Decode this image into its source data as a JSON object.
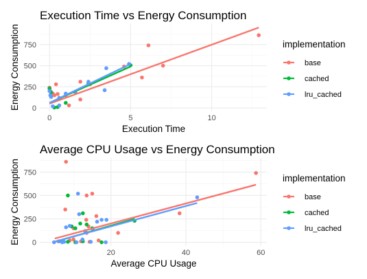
{
  "colors": {
    "base": "#F8766D",
    "cached": "#00BA38",
    "lru_cached": "#619CFF",
    "grid_major": "#EBEBEB",
    "grid_minor": "#F5F5F5"
  },
  "chart_data": [
    {
      "type": "scatter",
      "title": "Execution Time vs Energy Consumption",
      "xlabel": "Execution Time",
      "ylabel": "Energy Consumption",
      "xlim": [
        -0.6,
        13.4
      ],
      "ylim": [
        -40,
        1000
      ],
      "xticks": [
        0,
        5,
        10
      ],
      "yticks": [
        0,
        250,
        500,
        750
      ],
      "grid": true,
      "legend": {
        "title": "implementation",
        "position": "right",
        "entries": [
          "base",
          "cached",
          "lru_cached"
        ]
      },
      "series": [
        {
          "name": "base",
          "points": [
            [
              0,
              240
            ],
            [
              0.05,
              200
            ],
            [
              0.1,
              150
            ],
            [
              0.2,
              170
            ],
            [
              0.3,
              150
            ],
            [
              0.4,
              280
            ],
            [
              0.5,
              165
            ],
            [
              1,
              150
            ],
            [
              1.2,
              30
            ],
            [
              1.9,
              310
            ],
            [
              1.9,
              100
            ],
            [
              2.5,
              280
            ],
            [
              4.6,
              490
            ],
            [
              5.7,
              360
            ],
            [
              6.1,
              740
            ],
            [
              7,
              500
            ],
            [
              12.9,
              860
            ]
          ],
          "fit": [
            [
              0,
              50
            ],
            [
              12.9,
              950
            ]
          ]
        },
        {
          "name": "cached",
          "points": [
            [
              0,
              230
            ],
            [
              0.1,
              185
            ],
            [
              0.3,
              5
            ],
            [
              0.5,
              10
            ],
            [
              1.0,
              60
            ],
            [
              2.4,
              290
            ],
            [
              5.0,
              505
            ]
          ],
          "fit": [
            [
              0,
              60
            ],
            [
              5.0,
              490
            ]
          ]
        },
        {
          "name": "lru_cached",
          "points": [
            [
              0,
              200
            ],
            [
              0.05,
              150
            ],
            [
              0.1,
              130
            ],
            [
              0.2,
              20
            ],
            [
              0.6,
              30
            ],
            [
              0.6,
              120
            ],
            [
              1,
              170
            ],
            [
              1.6,
              180
            ],
            [
              2.4,
              310
            ],
            [
              3.5,
              470
            ],
            [
              3.4,
              210
            ],
            [
              4.9,
              520
            ]
          ],
          "fit": [
            [
              0,
              60
            ],
            [
              5.0,
              520
            ]
          ]
        }
      ]
    },
    {
      "type": "scatter",
      "title": "Average CPU Usage vs Energy Consumption",
      "xlabel": "Average CPU Usage",
      "ylabel": "Energy Consumption",
      "xlim": [
        1,
        61.6
      ],
      "ylim": [
        -40,
        900
      ],
      "xticks": [
        20,
        40,
        60
      ],
      "yticks": [
        0,
        250,
        500,
        750
      ],
      "grid": true,
      "legend": {
        "title": "implementation",
        "position": "right",
        "entries": [
          "base",
          "cached",
          "lru_cached"
        ]
      },
      "series": [
        {
          "name": "base",
          "points": [
            [
              8,
              860
            ],
            [
              58.7,
              740
            ],
            [
              7.8,
              350
            ],
            [
              15,
              520
            ],
            [
              13.5,
              500
            ],
            [
              38.3,
              310
            ],
            [
              16.1,
              280
            ],
            [
              13.4,
              240
            ],
            [
              14,
              170
            ],
            [
              21.9,
              100
            ],
            [
              10,
              150
            ],
            [
              13.5,
              100
            ],
            [
              6,
              10
            ],
            [
              9,
              20
            ],
            [
              16.7,
              20
            ],
            [
              12,
              10
            ],
            [
              7.1,
              5
            ],
            [
              14.3,
              5
            ],
            [
              10,
              30
            ]
          ],
          "fit": [
            [
              5,
              40
            ],
            [
              58.7,
              615
            ]
          ]
        },
        {
          "name": "cached",
          "points": [
            [
              8.5,
              500
            ],
            [
              12.5,
              310
            ],
            [
              26.3,
              230
            ],
            [
              9.5,
              170
            ],
            [
              11.8,
              200
            ],
            [
              13.5,
              190
            ],
            [
              10.5,
              150
            ],
            [
              15,
              150
            ],
            [
              8.5,
              5
            ],
            [
              10.5,
              0
            ],
            [
              12.5,
              10
            ],
            [
              17.5,
              0
            ]
          ],
          "fit": [
            [
              5,
              5
            ],
            [
              26.3,
              250
            ]
          ]
        },
        {
          "name": "lru_cached",
          "points": [
            [
              4.8,
              0
            ],
            [
              6.2,
              10
            ],
            [
              7,
              0
            ],
            [
              7.5,
              5
            ],
            [
              8,
              160
            ],
            [
              9,
              175
            ],
            [
              10.8,
              0
            ],
            [
              11.2,
              520
            ],
            [
              11.5,
              300
            ],
            [
              12.4,
              30
            ],
            [
              13.1,
              120
            ],
            [
              14.6,
              5
            ],
            [
              15.2,
              130
            ],
            [
              16.3,
              220
            ],
            [
              17.5,
              240
            ],
            [
              18.8,
              240
            ],
            [
              18.6,
              0
            ],
            [
              43,
              480
            ]
          ],
          "fit": [
            [
              4.8,
              5
            ],
            [
              43,
              420
            ]
          ]
        }
      ]
    }
  ]
}
